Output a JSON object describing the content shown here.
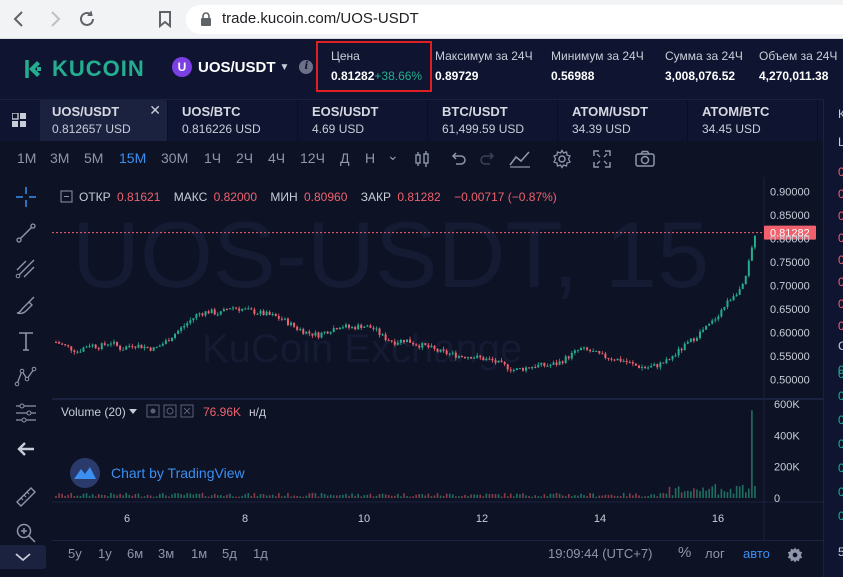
{
  "browser": {
    "url": "trade.kucoin.com/UOS-USDT"
  },
  "header": {
    "logo_text": "KUCOIN",
    "pair": "UOS/USDT",
    "pair_coin_letter": "U",
    "stats": [
      {
        "label": "Цена",
        "value": "0.81282",
        "change": "+38.66%"
      },
      {
        "label": "Максимум за 24Ч",
        "value": "0.89729"
      },
      {
        "label": "Минимум за 24Ч",
        "value": "0.56988"
      },
      {
        "label": "Сумма за 24Ч",
        "value": "3,008,076.52"
      },
      {
        "label": "Объем за 24Ч",
        "value": "4,270,011.38"
      }
    ],
    "highlight_color": "#e02020"
  },
  "tabs": [
    {
      "name": "UOS/USDT",
      "price": "0.812657 USD",
      "active": true,
      "close": "✕"
    },
    {
      "name": "UOS/BTC",
      "price": "0.816226 USD"
    },
    {
      "name": "EOS/USDT",
      "price": "4.69 USD"
    },
    {
      "name": "BTC/USDT",
      "price": "61,499.59 USD"
    },
    {
      "name": "ATOM/USDT",
      "price": "34.39 USD"
    },
    {
      "name": "ATOM/BTC",
      "price": "34.45 USD"
    }
  ],
  "toolbar": {
    "timeframes": [
      "1М",
      "3М",
      "5М",
      "15М",
      "30М",
      "1Ч",
      "2Ч",
      "4Ч",
      "12Ч",
      "Д",
      "Н"
    ],
    "active_timeframe": "15М",
    "more": "⌄"
  },
  "legend": {
    "open_label": "ОТКР",
    "open": "0.81621",
    "high_label": "МАКС",
    "high": "0.82000",
    "low_label": "МИН",
    "low": "0.80960",
    "close_label": "ЗАКР",
    "close": "0.81282",
    "change": "−0.00717 (−0.87%)"
  },
  "watermark": {
    "symbol": "UOS-USDT, 15",
    "exchange": "KuCoin Exchange"
  },
  "volume": {
    "label": "Volume (20)",
    "value": "76.96K",
    "na": "н/д"
  },
  "tradingview": {
    "label": "Chart by TradingView"
  },
  "price_axis": {
    "ticks": [
      "0.90000",
      "0.85000",
      "0.80000",
      "0.75000",
      "0.70000",
      "0.65000",
      "0.60000",
      "0.55000",
      "0.50000"
    ],
    "current": "0.81282"
  },
  "volume_axis": {
    "ticks": [
      "600K",
      "400K",
      "200K",
      "0"
    ]
  },
  "time_axis": {
    "ticks": [
      "6",
      "8",
      "10",
      "12",
      "14",
      "16"
    ]
  },
  "bottom": {
    "ranges": [
      "5y",
      "1y",
      "6м",
      "3м",
      "1м",
      "5д",
      "1д"
    ],
    "time": "19:09:44 (UTC+7)",
    "percent": "%",
    "log": "лог",
    "auto": "авто"
  },
  "right_panel": {
    "letters": [
      "К",
      "L",
      "0",
      "0",
      "0",
      "0",
      "0",
      "0",
      "0",
      "0",
      "0",
      "С",
      "0",
      "0",
      "0",
      "0",
      "0",
      "0",
      "0",
      "5"
    ]
  },
  "chart_data": {
    "type": "candlestick",
    "x_ticks": [
      "6",
      "8",
      "10",
      "12",
      "14",
      "16"
    ],
    "ylim": [
      0.48,
      0.91
    ],
    "close_series": [
      0.58,
      0.57,
      0.56,
      0.575,
      0.57,
      0.58,
      0.565,
      0.575,
      0.57,
      0.565,
      0.58,
      0.6,
      0.62,
      0.64,
      0.645,
      0.64,
      0.655,
      0.65,
      0.645,
      0.64,
      0.635,
      0.625,
      0.61,
      0.6,
      0.595,
      0.605,
      0.615,
      0.61,
      0.615,
      0.61,
      0.59,
      0.58,
      0.585,
      0.575,
      0.57,
      0.56,
      0.555,
      0.55,
      0.55,
      0.545,
      0.54,
      0.53,
      0.52,
      0.525,
      0.53,
      0.53,
      0.535,
      0.55,
      0.565,
      0.56,
      0.55,
      0.545,
      0.54,
      0.53,
      0.525,
      0.53,
      0.54,
      0.56,
      0.58,
      0.6,
      0.62,
      0.65,
      0.68,
      0.7,
      0.81
    ],
    "volume_ylim": [
      0,
      600000
    ],
    "last_volume": 76960
  }
}
